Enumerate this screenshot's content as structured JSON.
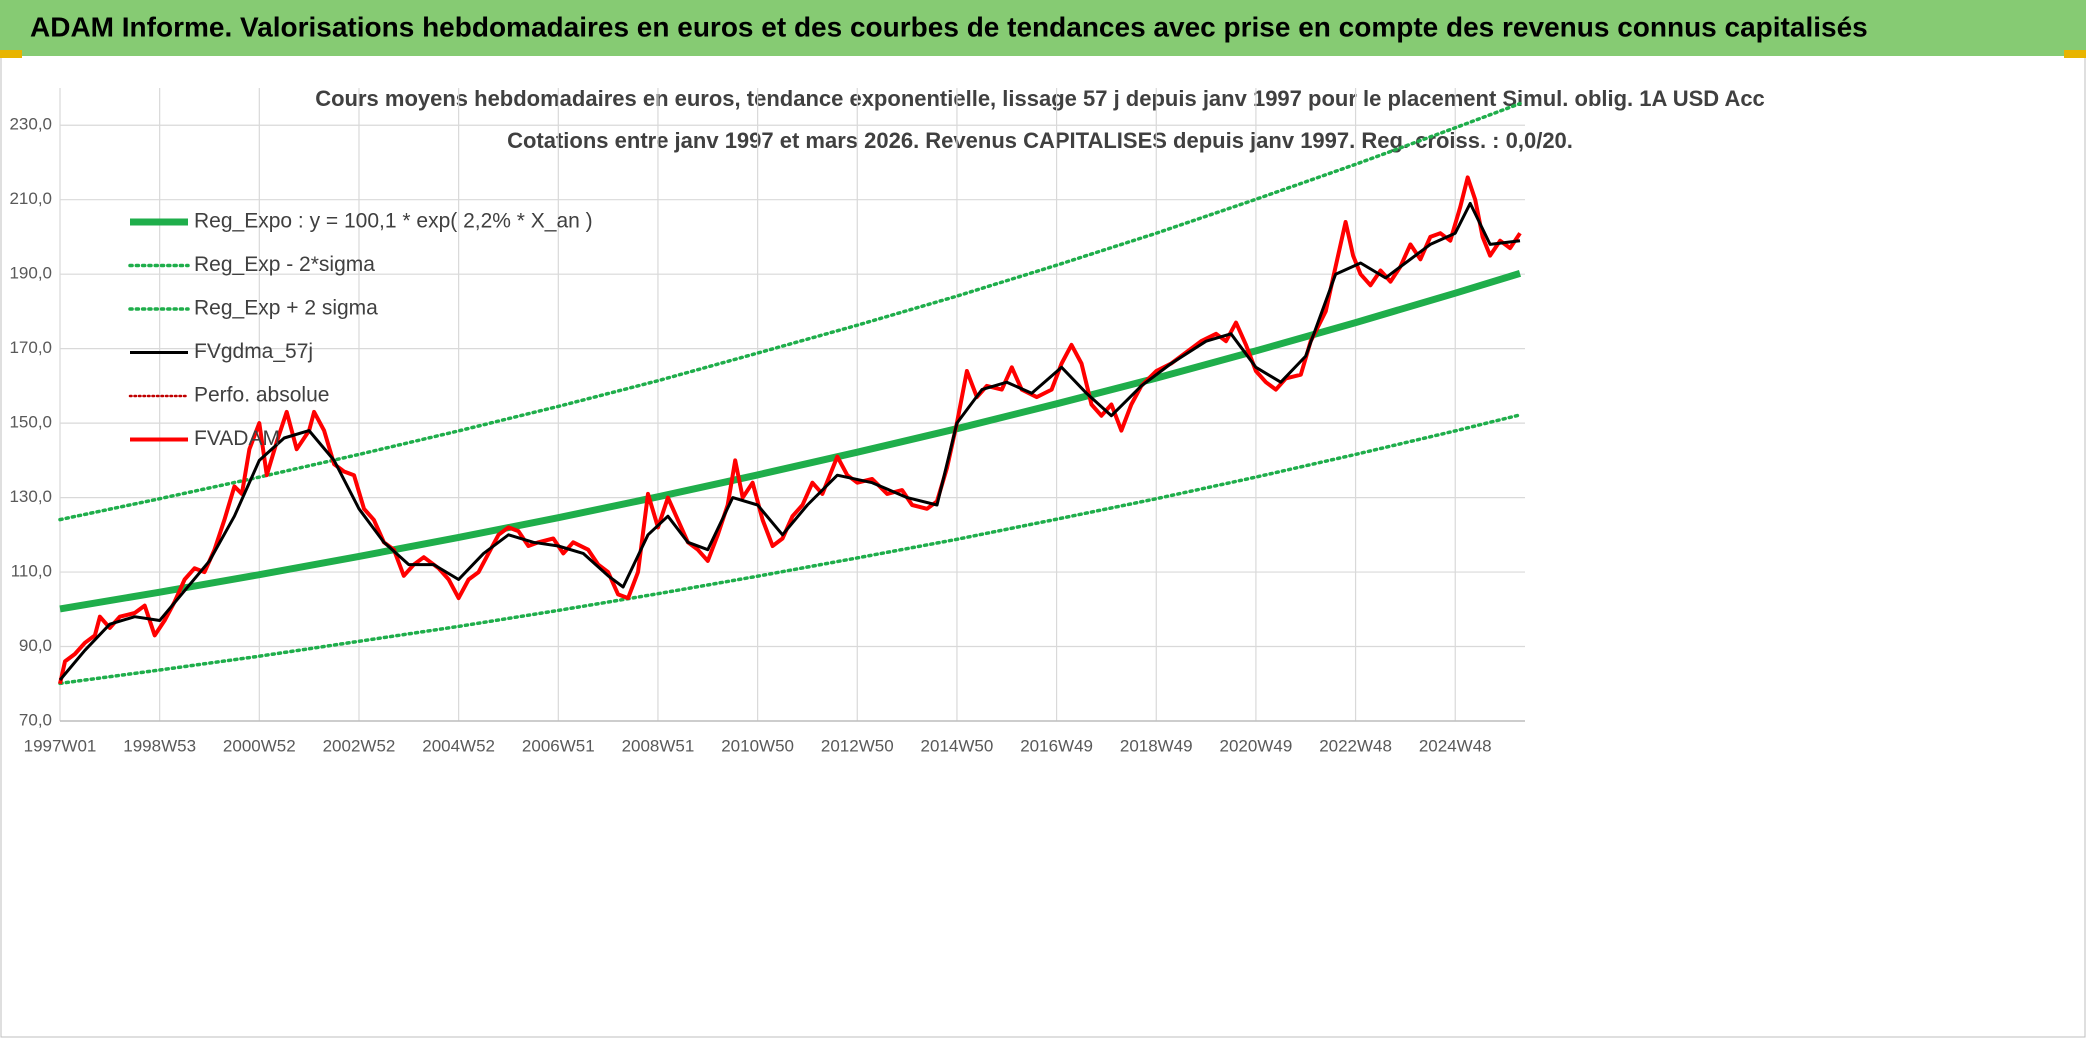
{
  "chart_data": {
    "type": "line",
    "banner": "ADAM Informe. Valorisations hebdomadaires en euros et des courbes de tendances avec prise en compte des revenus connus capitalisés",
    "title": "Cours moyens hebdomadaires en euros, tendance exponentielle, lissage 57 j depuis janv 1997 pour le placement Simul. oblig. 1A USD Acc",
    "subtitle": "Cotations entre janv 1997 et mars 2026. Revenus CAPITALISES depuis janv 1997. Reg. croiss. : 0,0/20.",
    "xlim": [
      1997,
      2026.4
    ],
    "ylim": [
      70,
      240
    ],
    "grid": true,
    "legend": "upper left",
    "xticks": [
      {
        "value": 1997,
        "label": "1997W01"
      },
      {
        "value": 1999,
        "label": "1998W53"
      },
      {
        "value": 2001,
        "label": "2000W52"
      },
      {
        "value": 2003,
        "label": "2002W52"
      },
      {
        "value": 2005,
        "label": "2004W52"
      },
      {
        "value": 2007,
        "label": "2006W51"
      },
      {
        "value": 2009,
        "label": "2008W51"
      },
      {
        "value": 2011,
        "label": "2010W50"
      },
      {
        "value": 2013,
        "label": "2012W50"
      },
      {
        "value": 2015,
        "label": "2014W50"
      },
      {
        "value": 2017,
        "label": "2016W49"
      },
      {
        "value": 2019,
        "label": "2018W49"
      },
      {
        "value": 2021,
        "label": "2020W49"
      },
      {
        "value": 2023,
        "label": "2022W48"
      },
      {
        "value": 2025,
        "label": "2024W48"
      }
    ],
    "yticks": [
      {
        "value": 70,
        "label": "70,0"
      },
      {
        "value": 90,
        "label": "90,0"
      },
      {
        "value": 110,
        "label": "110,0"
      },
      {
        "value": 130,
        "label": "130,0"
      },
      {
        "value": 150,
        "label": "150,0"
      },
      {
        "value": 170,
        "label": "170,0"
      },
      {
        "value": 190,
        "label": "190,0"
      },
      {
        "value": 210,
        "label": "210,0"
      },
      {
        "value": 230,
        "label": "230,0"
      }
    ],
    "series": [
      {
        "name": "Reg_Expo : y = 100,1 * exp( 2,2% *  X_an )",
        "color": "#1fae4b",
        "width": 7,
        "dash": "solid",
        "x": [
          1997,
          1999,
          2001,
          2003,
          2005,
          2007,
          2009,
          2011,
          2013,
          2015,
          2017,
          2019,
          2021,
          2023,
          2025,
          2026.3
        ],
        "values": [
          100.1,
          104.6,
          109.3,
          114.2,
          119.3,
          124.6,
          130.2,
          136.1,
          142.2,
          148.5,
          155.2,
          162.1,
          169.4,
          177.0,
          184.9,
          190.2
        ]
      },
      {
        "name": "Reg_Exp - 2*sigma",
        "color": "#1fae4b",
        "width": 3.5,
        "dash": "dotted",
        "x": [
          1997,
          1999,
          2001,
          2003,
          2005,
          2007,
          2009,
          2011,
          2013,
          2015,
          2017,
          2019,
          2021,
          2023,
          2025,
          2026.3
        ],
        "values": [
          80.1,
          83.7,
          87.4,
          91.4,
          95.4,
          99.7,
          104.2,
          108.9,
          113.8,
          118.8,
          124.2,
          129.7,
          135.5,
          141.6,
          147.9,
          152.2
        ]
      },
      {
        "name": "Reg_Exp + 2 sigma",
        "color": "#1fae4b",
        "width": 3.5,
        "dash": "dotted",
        "x": [
          1997,
          1999,
          2001,
          2003,
          2005,
          2007,
          2009,
          2011,
          2013,
          2015,
          2017,
          2019,
          2021,
          2023,
          2025,
          2026.3
        ],
        "values": [
          124.1,
          129.7,
          135.5,
          141.6,
          147.9,
          154.5,
          161.4,
          168.8,
          176.3,
          184.1,
          192.4,
          201.0,
          210.1,
          219.5,
          229.3,
          235.8
        ]
      },
      {
        "name": "FVgdma_57j",
        "color": "#000000",
        "width": 3,
        "dash": "solid",
        "x": [
          1997,
          1997.5,
          1998,
          1998.5,
          1999,
          1999.5,
          2000,
          2000.5,
          2001,
          2001.5,
          2002,
          2002.5,
          2003,
          2003.5,
          2004,
          2004.5,
          2005,
          2005.5,
          2006,
          2006.5,
          2007,
          2007.5,
          2008,
          2008.3,
          2008.8,
          2009.2,
          2009.6,
          2010,
          2010.5,
          2011,
          2011.5,
          2012,
          2012.6,
          2013.3,
          2014,
          2014.6,
          2015,
          2015.5,
          2016,
          2016.5,
          2017.1,
          2017.6,
          2018.1,
          2018.7,
          2019.3,
          2020,
          2020.5,
          2021,
          2021.5,
          2022,
          2022.6,
          2023.1,
          2023.6,
          2024,
          2024.5,
          2025,
          2025.3,
          2025.7,
          2026.3
        ],
        "values": [
          81,
          89,
          96,
          98,
          97,
          105,
          113,
          125,
          140,
          146,
          148,
          140,
          127,
          118,
          112,
          112,
          108,
          115,
          120,
          118,
          117,
          115,
          109,
          106,
          120,
          125,
          118,
          116,
          130,
          128,
          120,
          128,
          136,
          134,
          130,
          128,
          150,
          159,
          161,
          158,
          165,
          158,
          152,
          160,
          166,
          172,
          174,
          165,
          161,
          168,
          190,
          193,
          189,
          193,
          198,
          201,
          209,
          198,
          199
        ]
      },
      {
        "name": "Perfo. absolue",
        "color": "#c00000",
        "width": 2.5,
        "dash": "dotted",
        "x": [],
        "values": []
      },
      {
        "name": "FVADAM",
        "color": "#ff0000",
        "width": 4,
        "dash": "solid",
        "x": [
          1997.0,
          1997.1,
          1997.3,
          1997.5,
          1997.7,
          1997.8,
          1998.0,
          1998.2,
          1998.5,
          1998.7,
          1998.9,
          1999.1,
          1999.3,
          1999.5,
          1999.7,
          1999.9,
          2000.1,
          2000.3,
          2000.5,
          2000.65,
          2000.8,
          2001.0,
          2001.15,
          2001.35,
          2001.55,
          2001.75,
          2002.0,
          2002.1,
          2002.3,
          2002.5,
          2002.7,
          2002.9,
          2003.1,
          2003.3,
          2003.5,
          2003.7,
          2003.9,
          2004.1,
          2004.3,
          2004.6,
          2004.8,
          2005.0,
          2005.2,
          2005.4,
          2005.6,
          2005.8,
          2006.0,
          2006.2,
          2006.4,
          2006.6,
          2006.9,
          2007.1,
          2007.3,
          2007.6,
          2007.8,
          2008.0,
          2008.2,
          2008.4,
          2008.6,
          2008.8,
          2009.0,
          2009.2,
          2009.4,
          2009.6,
          2009.8,
          2010.0,
          2010.2,
          2010.4,
          2010.55,
          2010.7,
          2010.9,
          2011.1,
          2011.3,
          2011.5,
          2011.7,
          2011.9,
          2012.1,
          2012.3,
          2012.6,
          2012.8,
          2013.0,
          2013.3,
          2013.6,
          2013.9,
          2014.1,
          2014.4,
          2014.6,
          2014.8,
          2015.0,
          2015.2,
          2015.4,
          2015.6,
          2015.9,
          2016.1,
          2016.3,
          2016.6,
          2016.9,
          2017.1,
          2017.3,
          2017.5,
          2017.7,
          2017.9,
          2018.1,
          2018.3,
          2018.5,
          2018.7,
          2019.0,
          2019.3,
          2019.6,
          2019.9,
          2020.2,
          2020.4,
          2020.6,
          2020.8,
          2021.0,
          2021.2,
          2021.4,
          2021.6,
          2021.9,
          2022.1,
          2022.4,
          2022.6,
          2022.8,
          2022.95,
          2023.1,
          2023.3,
          2023.5,
          2023.7,
          2023.9,
          2024.1,
          2024.3,
          2024.5,
          2024.7,
          2024.9,
          2025.1,
          2025.25,
          2025.4,
          2025.55,
          2025.7,
          2025.9,
          2026.1,
          2026.3
        ],
        "values": [
          80,
          86,
          88,
          91,
          93,
          98,
          95,
          98,
          99,
          101,
          93,
          97,
          102,
          108,
          111,
          110,
          116,
          124,
          133,
          131,
          143,
          150,
          136,
          145,
          153,
          143,
          148,
          153,
          148,
          139,
          137,
          136,
          127,
          124,
          118,
          116,
          109,
          112,
          114,
          111,
          108,
          103,
          108,
          110,
          115,
          120,
          122,
          121,
          117,
          118,
          119,
          115,
          118,
          116,
          112,
          110,
          104,
          103,
          110,
          131,
          122,
          130,
          124,
          118,
          116,
          113,
          120,
          128,
          140,
          130,
          134,
          124,
          117,
          119,
          125,
          128,
          134,
          131,
          141,
          136,
          134,
          135,
          131,
          132,
          128,
          127,
          129,
          138,
          150,
          164,
          157,
          160,
          159,
          165,
          159,
          157,
          159,
          166,
          171,
          166,
          155,
          152,
          155,
          148,
          155,
          160,
          164,
          166,
          169,
          172,
          174,
          172,
          177,
          171,
          164,
          161,
          159,
          162,
          163,
          172,
          180,
          192,
          204,
          195,
          190,
          187,
          191,
          188,
          192,
          198,
          194,
          200,
          201,
          199,
          208,
          216,
          210,
          200,
          195,
          199,
          197,
          201
        ]
      }
    ],
    "draw_order": [
      0,
      1,
      2,
      5,
      3
    ]
  }
}
